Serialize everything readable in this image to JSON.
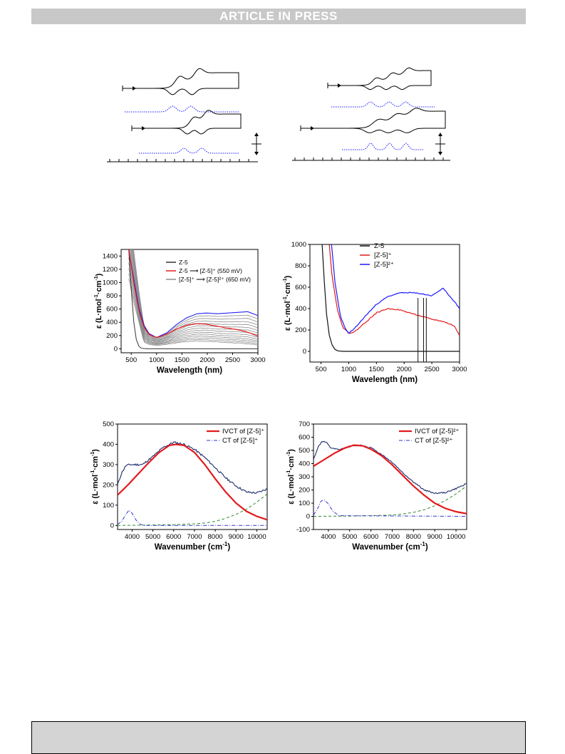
{
  "header": {
    "banner": "ARTICLE IN PRESS"
  },
  "colors": {
    "black": "#111111",
    "red": "#e31a1c",
    "blue": "#1a1aff",
    "gray": "#8c8c8c",
    "navy": "#1c2a6b",
    "green": "#2e8b2e",
    "dashblue": "#3333cc"
  },
  "chart_data": [
    {
      "type": "line",
      "panel": "cv-left",
      "series": [
        {
          "values": "cyclic voltammogram, two reversible waves (top)"
        },
        {
          "values": "dotted blue deconvolution, two peaks (top)"
        },
        {
          "values": "cyclic voltammogram, two reversible waves (bottom)"
        },
        {
          "values": "dotted blue deconvolution, two peaks (bottom)"
        }
      ]
    },
    {
      "type": "line",
      "panel": "cv-right",
      "series": [
        {
          "values": "cyclic voltammogram, three waves (top)"
        },
        {
          "values": "dotted blue deconvolution, three peaks (top)"
        },
        {
          "values": "cyclic voltammogram, three waves (bottom)"
        },
        {
          "values": "dotted blue deconvolution, three peaks (bottom)"
        }
      ]
    },
    {
      "type": "line",
      "panel": "spectro-left",
      "xlabel": "Wavelength (nm)",
      "ylabel_main": "ε (L·mol",
      "ylabel_sup1": "-1",
      "ylabel_mid": "·cm",
      "ylabel_sup2": "-1",
      "ylabel_end": ")",
      "xlim": [
        300,
        3000
      ],
      "ylim": [
        -60,
        1500
      ],
      "xticks": [
        "500",
        "1000",
        "1500",
        "2000",
        "2500",
        "3000"
      ],
      "yticks": [
        "0",
        "200",
        "400",
        "600",
        "800",
        "1000",
        "1200",
        "1400"
      ],
      "legend": [
        {
          "label": "Z-5",
          "color": "#333333"
        },
        {
          "label": "Z-5 ⟶ [Z-5]⁺  (550 mV)",
          "color": "#e31a1c"
        },
        {
          "label": "[Z-5]⁺ ⟶ [Z-5]²⁺  (650 mV)",
          "color": "#8c8c8c"
        }
      ],
      "series": [
        {
          "name": "Z-5",
          "x": [
            450,
            500,
            550,
            600,
            650,
            700,
            800,
            1000,
            3000
          ],
          "y": [
            1500,
            900,
            400,
            140,
            40,
            8,
            0,
            0,
            0
          ]
        },
        {
          "name": "[Z-5]+",
          "x": [
            450,
            550,
            650,
            750,
            850,
            1000,
            1200,
            1400,
            1600,
            1800,
            2000,
            2200,
            2400,
            2600,
            2800,
            3000
          ],
          "y": [
            1500,
            1000,
            580,
            330,
            215,
            170,
            220,
            300,
            360,
            380,
            370,
            340,
            310,
            290,
            250,
            190
          ]
        },
        {
          "name": "[Z-5]2+",
          "x": [
            450,
            550,
            650,
            750,
            850,
            1000,
            1200,
            1400,
            1600,
            1800,
            2000,
            2200,
            2400,
            2600,
            2800,
            3000
          ],
          "y": [
            1500,
            1050,
            620,
            360,
            230,
            170,
            240,
            370,
            470,
            530,
            540,
            530,
            540,
            550,
            560,
            500
          ]
        }
      ]
    },
    {
      "type": "line",
      "panel": "spectro-right",
      "xlabel": "Wavelength (nm)",
      "ylabel_main": "ε (L·mol",
      "ylabel_sup1": "-1",
      "ylabel_mid": "·cm",
      "ylabel_sup2": "-1",
      "ylabel_end": ")",
      "xlim": [
        300,
        3000
      ],
      "ylim": [
        -100,
        1000
      ],
      "xticks": [
        "500",
        "1000",
        "1500",
        "2000",
        "2500",
        "3000"
      ],
      "yticks": [
        "0",
        "200",
        "400",
        "600",
        "800",
        "1000"
      ],
      "legend": [
        {
          "label": "Z-5",
          "color": "#111111"
        },
        {
          "label": "[Z-5]⁺",
          "color": "#e31a1c"
        },
        {
          "label": "[Z-5]²⁺",
          "color": "#1a1aff"
        }
      ],
      "series": [
        {
          "name": "Z-5",
          "x": [
            520,
            560,
            600,
            650,
            700,
            750,
            800,
            900,
            1200,
            3000
          ],
          "y": [
            1000,
            650,
            350,
            150,
            60,
            20,
            5,
            0,
            0,
            0
          ]
        },
        {
          "name": "[Z-5]+",
          "x": [
            650,
            700,
            800,
            900,
            1000,
            1100,
            1300,
            1500,
            1700,
            1900,
            2100,
            2300,
            2500,
            2700,
            2900,
            3000
          ],
          "y": [
            1000,
            700,
            380,
            220,
            170,
            180,
            270,
            360,
            400,
            390,
            360,
            330,
            300,
            280,
            240,
            150
          ]
        },
        {
          "name": "[Z-5]2+",
          "x": [
            690,
            750,
            850,
            950,
            1000,
            1100,
            1300,
            1500,
            1700,
            1900,
            2100,
            2300,
            2500,
            2700,
            2900,
            3000
          ],
          "y": [
            1000,
            650,
            330,
            200,
            170,
            210,
            330,
            440,
            510,
            545,
            550,
            540,
            520,
            590,
            470,
            400
          ]
        }
      ]
    },
    {
      "type": "line",
      "panel": "fit-left",
      "xlabel": "Wavenumber (cm",
      "xlabel_sup": "-1",
      "xlabel_end": ")",
      "ylabel_main": "ε (L·mol",
      "ylabel_sup1": "-1",
      "ylabel_mid": "·cm",
      "ylabel_sup2": "-1",
      "ylabel_end": ")",
      "xlim": [
        3300,
        10500
      ],
      "ylim": [
        -20,
        500
      ],
      "xticks": [
        "4000",
        "5000",
        "6000",
        "7000",
        "8000",
        "9000",
        "10000"
      ],
      "yticks": [
        "0",
        "100",
        "200",
        "300",
        "400",
        "500"
      ],
      "legend": [
        {
          "label": "IVCT of [Z-5]⁺",
          "color": "#e31a1c"
        },
        {
          "label": "CT of [Z-5]⁺",
          "color": "#3333cc"
        }
      ],
      "series": [
        {
          "name": "IVCT of [Z-5]+",
          "x": [
            3300,
            3800,
            4300,
            4800,
            5300,
            5800,
            6100,
            6500,
            7000,
            7500,
            8000,
            8500,
            9000,
            9500,
            10000,
            10500
          ],
          "y": [
            150,
            200,
            255,
            310,
            360,
            395,
            400,
            395,
            360,
            300,
            230,
            165,
            110,
            70,
            45,
            28
          ]
        },
        {
          "name": "experimental",
          "x": [
            3300,
            3500,
            3700,
            3900,
            4100,
            4300,
            4500,
            5000,
            5500,
            6000,
            6500,
            7000,
            7500,
            8000,
            8500,
            9000,
            9500,
            10000,
            10500
          ],
          "y": [
            200,
            260,
            295,
            300,
            300,
            300,
            300,
            340,
            385,
            410,
            400,
            375,
            335,
            285,
            235,
            195,
            165,
            160,
            180
          ]
        },
        {
          "name": "CT of [Z-5]+",
          "x": [
            3300,
            3500,
            3700,
            3850,
            4000,
            4200,
            4400,
            4600,
            10500
          ],
          "y": [
            5,
            20,
            55,
            75,
            60,
            25,
            5,
            0,
            0
          ]
        },
        {
          "name": "baseline",
          "x": [
            3300,
            5000,
            6000,
            7000,
            7500,
            8000,
            8500,
            9000,
            9500,
            10000,
            10500
          ],
          "y": [
            0,
            2,
            4,
            8,
            12,
            20,
            35,
            55,
            80,
            115,
            155
          ]
        }
      ]
    },
    {
      "type": "line",
      "panel": "fit-right",
      "xlabel": "Wavenumber (cm",
      "xlabel_sup": "-1",
      "xlabel_end": ")",
      "ylabel_main": "ε (L·mol",
      "ylabel_sup1": "-1",
      "ylabel_mid": "·cm",
      "ylabel_sup2": "-1",
      "ylabel_end": ")",
      "xlim": [
        3300,
        10500
      ],
      "ylim": [
        -100,
        700
      ],
      "xticks": [
        "4000",
        "5000",
        "6000",
        "7000",
        "8000",
        "9000",
        "10000"
      ],
      "yticks": [
        "-100",
        "0",
        "100",
        "200",
        "300",
        "400",
        "500",
        "600",
        "700"
      ],
      "legend": [
        {
          "label": "IVCT of [Z-5]²⁺",
          "color": "#e31a1c"
        },
        {
          "label": "CT of [Z-5]²⁺",
          "color": "#3333cc"
        }
      ],
      "series": [
        {
          "name": "IVCT of [Z-5]2+",
          "x": [
            3300,
            3800,
            4300,
            4800,
            5200,
            5600,
            6000,
            6500,
            7000,
            7500,
            8000,
            8500,
            9000,
            9500,
            10000,
            10500
          ],
          "y": [
            380,
            430,
            480,
            520,
            540,
            535,
            510,
            460,
            390,
            310,
            230,
            160,
            100,
            60,
            35,
            20
          ]
        },
        {
          "name": "experimental",
          "x": [
            3300,
            3500,
            3700,
            3900,
            4100,
            4300,
            4500,
            5000,
            5500,
            6000,
            6500,
            7000,
            7500,
            8000,
            8500,
            9000,
            9500,
            10000,
            10500
          ],
          "y": [
            430,
            520,
            570,
            560,
            520,
            510,
            505,
            530,
            540,
            520,
            470,
            410,
            330,
            260,
            200,
            175,
            180,
            210,
            250
          ]
        },
        {
          "name": "CT of [Z-5]2+",
          "x": [
            3300,
            3500,
            3650,
            3800,
            4000,
            4200,
            4500,
            10500
          ],
          "y": [
            10,
            60,
            115,
            125,
            95,
            40,
            5,
            0
          ]
        },
        {
          "name": "baseline",
          "x": [
            3300,
            5000,
            6000,
            7000,
            7500,
            8000,
            8500,
            9000,
            9500,
            10000,
            10500
          ],
          "y": [
            0,
            2,
            5,
            10,
            18,
            30,
            50,
            80,
            120,
            170,
            230
          ]
        }
      ]
    }
  ]
}
